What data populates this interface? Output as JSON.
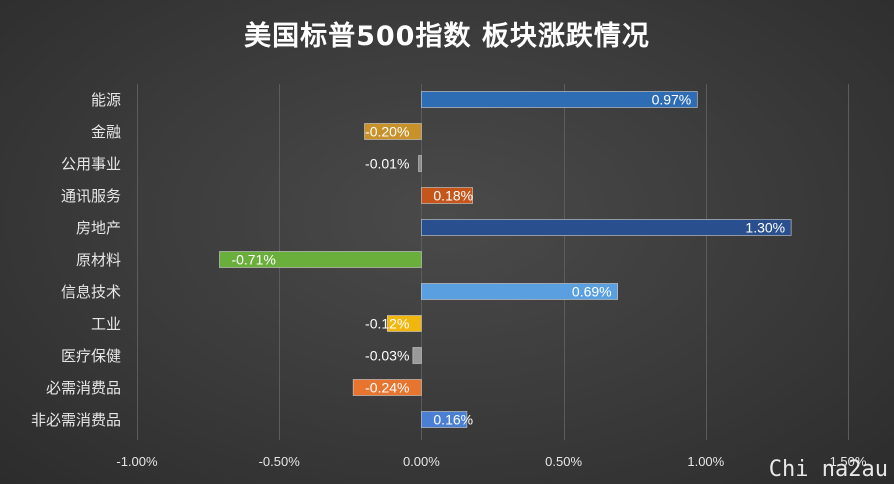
{
  "chart_data": {
    "type": "bar",
    "orientation": "horizontal",
    "title": "美国标普500指数 板块涨跌情况",
    "categories": [
      "能源",
      "金融",
      "公用事业",
      "通讯服务",
      "房地产",
      "原材料",
      "信息技术",
      "工业",
      "医疗保健",
      "必需消费品",
      "非必需消费品"
    ],
    "values": [
      0.97,
      -0.2,
      -0.01,
      0.18,
      1.3,
      -0.71,
      0.69,
      -0.12,
      -0.03,
      -0.24,
      0.16
    ],
    "data_labels": [
      "0.97%",
      "-0.20%",
      "-0.01%",
      "0.18%",
      "1.30%",
      "-0.71%",
      "0.69%",
      "-0.12%",
      "-0.03%",
      "-0.24%",
      "0.16%"
    ],
    "bar_colors": [
      "#2e6db4",
      "#c8912a",
      "#8c8c8c",
      "#c4561c",
      "#2a4f8f",
      "#6aaf3c",
      "#5aa0e0",
      "#f2b70f",
      "#9a9a9a",
      "#e8752f",
      "#4a7fd4"
    ],
    "xlim": [
      -1.0,
      1.5
    ],
    "x_ticks": [
      -1.0,
      -0.5,
      0.0,
      0.5,
      1.0,
      1.5
    ],
    "x_tick_labels": [
      "-1.00%",
      "-0.50%",
      "0.00%",
      "0.50%",
      "1.00%",
      "1.50%"
    ],
    "xlabel": "",
    "ylabel": "",
    "grid": "vertical",
    "legend": "none"
  },
  "watermark": "Chi na2au"
}
